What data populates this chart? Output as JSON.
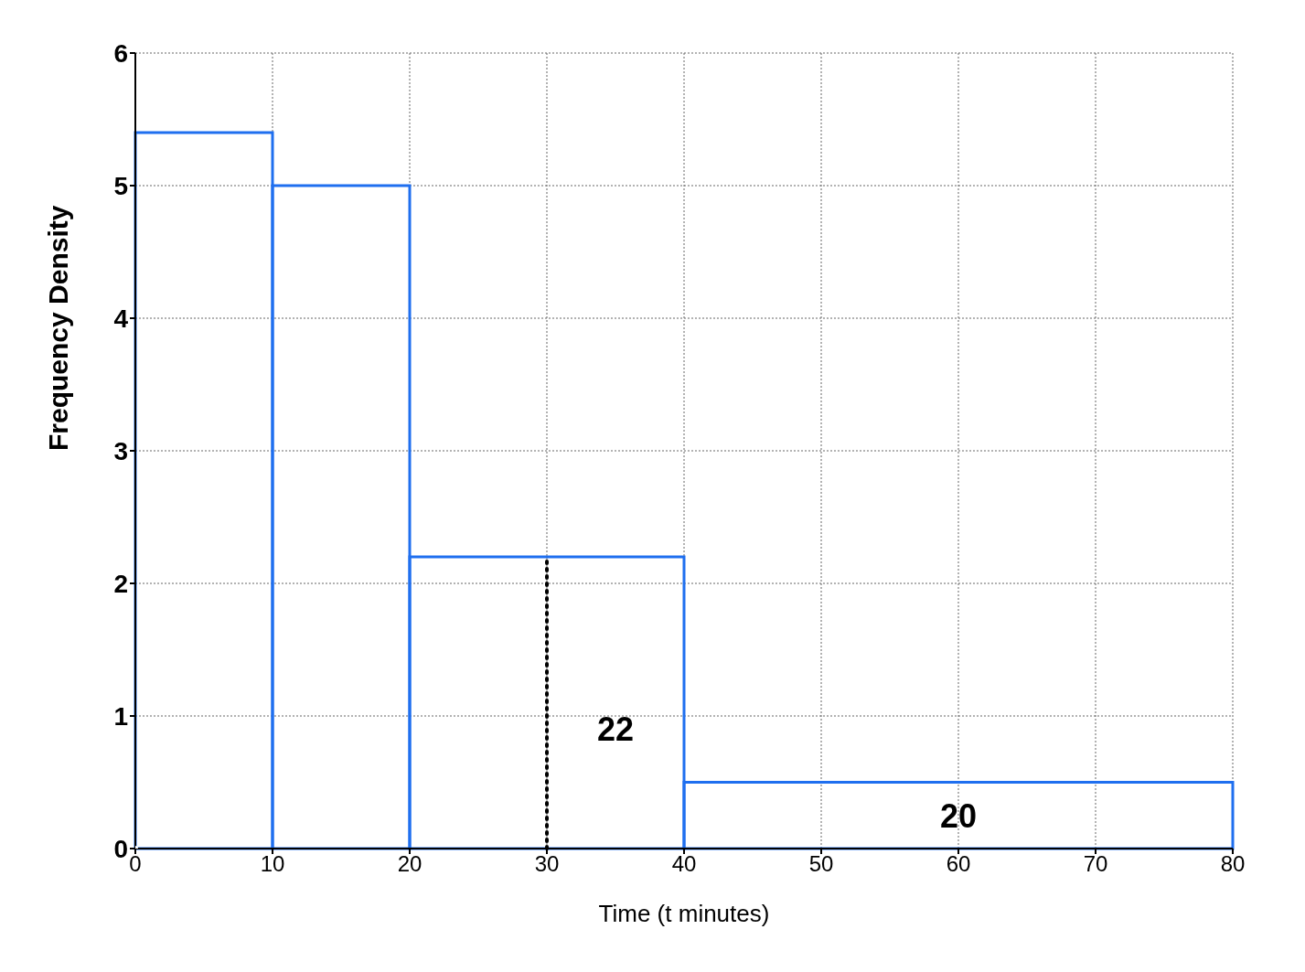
{
  "chart_data": {
    "type": "histogram",
    "xlabel": "Time (t minutes)",
    "ylabel": "Frequency Density",
    "bins": [
      0,
      10,
      20,
      40,
      80
    ],
    "values": [
      5.4,
      5,
      2.2,
      0.5
    ],
    "color": "#1f6fef",
    "xlim": [
      0,
      80
    ],
    "xticks": [
      0,
      10,
      20,
      30,
      40,
      50,
      60,
      70,
      80
    ],
    "ylim": [
      0,
      6
    ],
    "yticks": [
      0,
      1,
      2,
      3,
      4,
      5,
      6
    ],
    "grid": true,
    "ref_lines": [
      {
        "axis": "x",
        "value": 30,
        "line_style": "dotted",
        "color": "#000000"
      }
    ],
    "annotations": [
      "22",
      "20"
    ]
  }
}
